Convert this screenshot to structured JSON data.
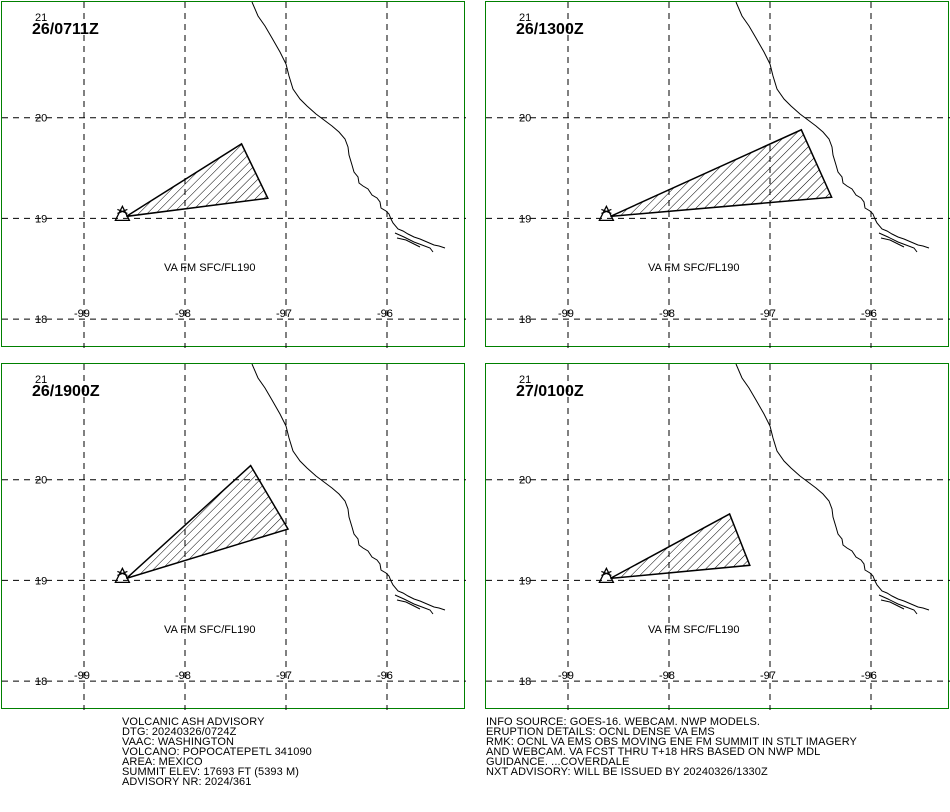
{
  "panels": [
    {
      "title": "26/0711Z",
      "label": "VA FM SFC/FL190",
      "polygon": [
        [
          -98.58,
          19.02
        ],
        [
          -97.44,
          19.74
        ],
        [
          -97.18,
          19.2
        ]
      ]
    },
    {
      "title": "26/1300Z",
      "label": "VA FM SFC/FL190",
      "polygon": [
        [
          -98.58,
          19.02
        ],
        [
          -96.69,
          19.88
        ],
        [
          -96.39,
          19.21
        ]
      ]
    },
    {
      "title": "26/1900Z",
      "label": "VA FM SFC/FL190",
      "polygon": [
        [
          -98.58,
          19.02
        ],
        [
          -97.35,
          20.14
        ],
        [
          -96.98,
          19.51
        ]
      ]
    },
    {
      "title": "27/0100Z",
      "label": "VA FM SFC/FL190",
      "polygon": [
        [
          -98.58,
          19.02
        ],
        [
          -97.4,
          19.66
        ],
        [
          -97.2,
          19.15
        ]
      ]
    }
  ],
  "axes": {
    "lat_labels": [
      "21",
      "20",
      "19",
      "18"
    ],
    "lat_values": [
      21,
      20,
      19,
      18
    ],
    "lon_labels": [
      "-99",
      "-98",
      "-97",
      "-96"
    ],
    "lon_values": [
      -99,
      -98,
      -97,
      -96
    ]
  },
  "volcano": {
    "lon": -98.62,
    "lat": 19.02,
    "symbol": "triangle"
  },
  "advisory_left": [
    "VOLCANIC ASH ADVISORY",
    "DTG: 20240326/0724Z",
    "VAAC: WASHINGTON",
    "VOLCANO: POPOCATEPETL 341090",
    "AREA: MEXICO",
    "SUMMIT ELEV: 17693 FT (5393 M)",
    "ADVISORY NR: 2024/361"
  ],
  "advisory_right": [
    "INFO SOURCE: GOES-16. WEBCAM. NWP MODELS.",
    "ERUPTION DETAILS: OCNL DENSE VA EMS",
    "RMK: OCNL VA EMS OBS MOVING ENE FM SUMMIT IN STLT IMAGERY",
    "AND WEBCAM. VA FCST THRU T+18 HRS BASED ON NWP MDL",
    "GUIDANCE. ...COVERDALE",
    "NXT ADVISORY: WILL BE ISSUED BY 20240326/1330Z"
  ],
  "colors": {
    "frame": "#008000",
    "lines": "#000000",
    "background": "#ffffff"
  }
}
